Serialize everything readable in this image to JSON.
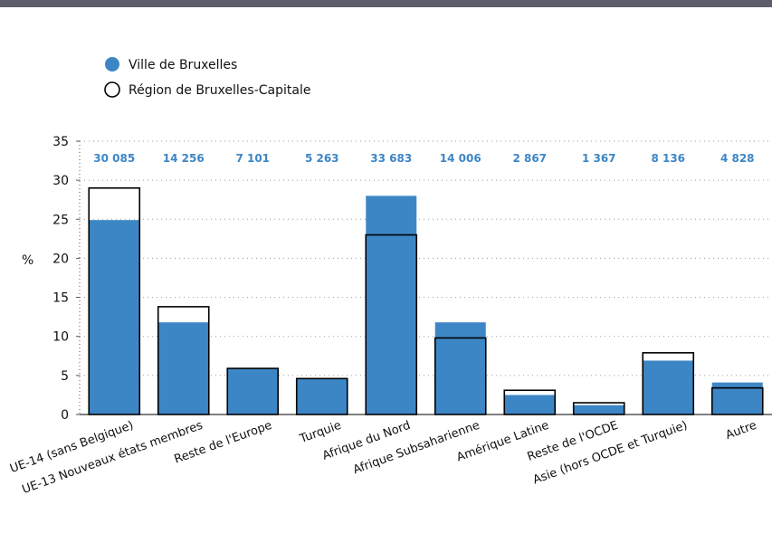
{
  "chart_data": {
    "type": "bar",
    "title": "",
    "xlabel": "",
    "ylabel": "%",
    "ylim": [
      0,
      35
    ],
    "yticks": [
      0,
      5,
      10,
      15,
      20,
      25,
      30,
      35
    ],
    "grid": "horizontal-dotted",
    "legend_placement": "top-left",
    "categories": [
      "UE-14 (sans Belgique)",
      "UE-13 Nouveaux états membres",
      "Reste de l'Europe",
      "Turquie",
      "Afrique du Nord",
      "Afrique Subsaharienne",
      "Amérique Latine",
      "Reste de l'OCDE",
      "Asie (hors OCDE et Turquie)",
      "Autre"
    ],
    "counts": [
      "30 085",
      "14 256",
      "7 101",
      "5 263",
      "33 683",
      "14 006",
      "2 867",
      "1 367",
      "8 136",
      "4 828"
    ],
    "series": [
      {
        "name": "Ville de Bruxelles",
        "color": "#3d86c6",
        "style": "filled",
        "values": [
          24.9,
          11.8,
          5.9,
          4.6,
          28.0,
          11.8,
          2.5,
          1.2,
          6.9,
          4.1
        ]
      },
      {
        "name": "Région de Bruxelles-Capitale",
        "color": "#000000",
        "style": "outline",
        "values": [
          29.0,
          13.8,
          5.9,
          4.6,
          23.0,
          9.8,
          3.1,
          1.5,
          7.9,
          3.4
        ]
      }
    ]
  }
}
